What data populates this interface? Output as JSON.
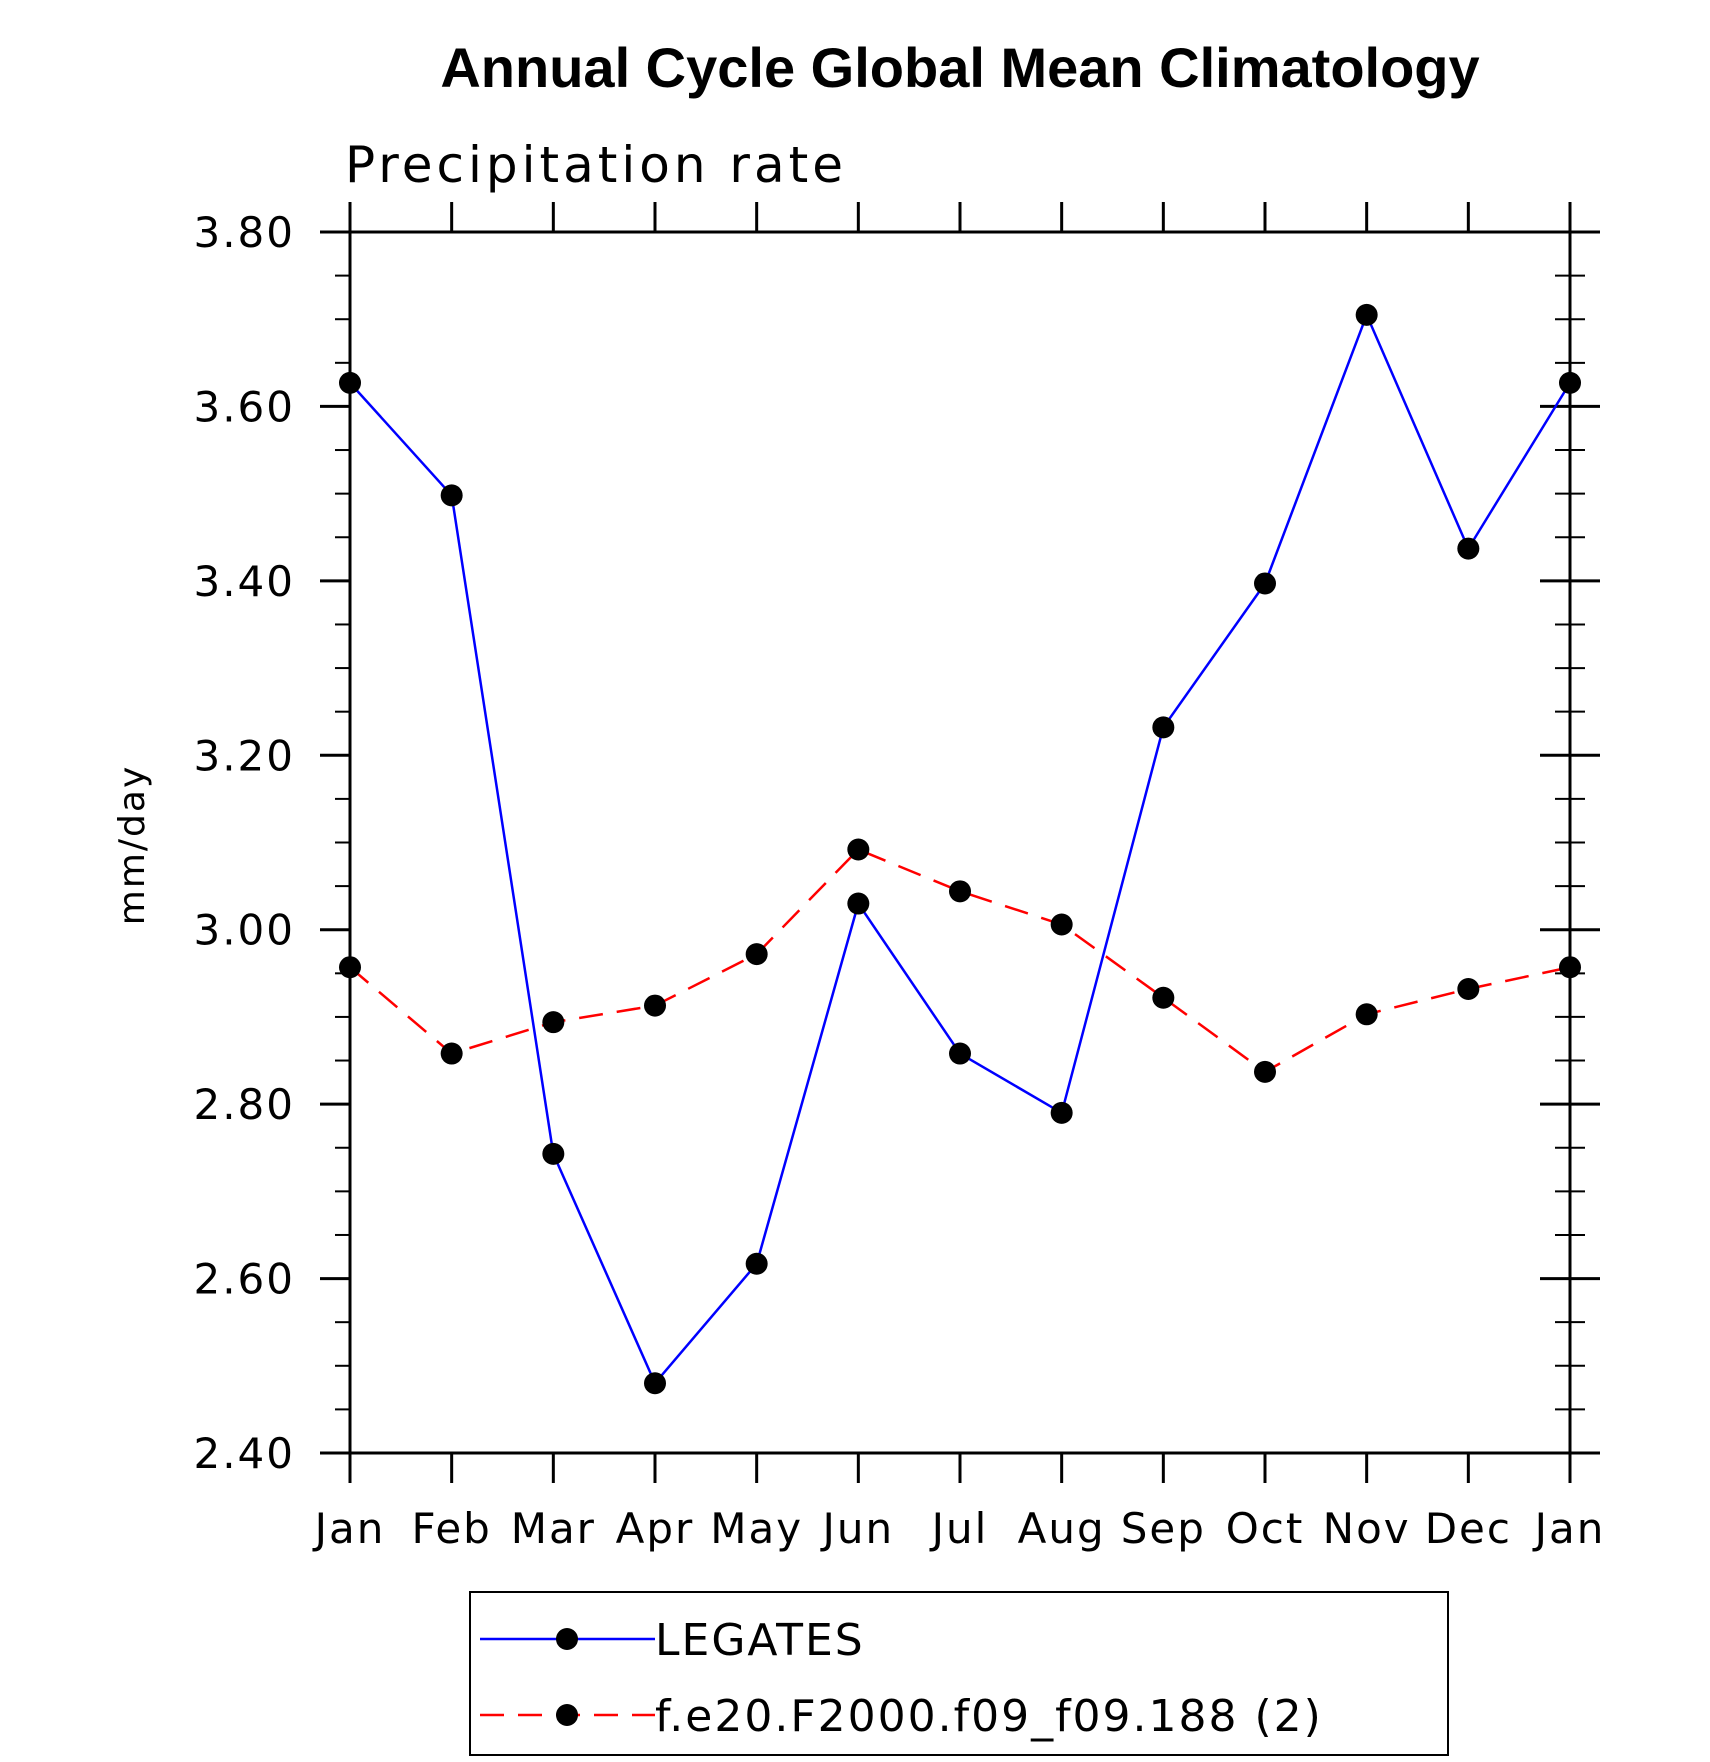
{
  "chart_data": {
    "type": "line",
    "title": "Annual Cycle Global Mean Climatology",
    "subtitle": "Precipitation rate",
    "xlabel": "",
    "ylabel": "mm/day",
    "categories": [
      "Jan",
      "Feb",
      "Mar",
      "Apr",
      "May",
      "Jun",
      "Jul",
      "Aug",
      "Sep",
      "Oct",
      "Nov",
      "Dec",
      "Jan"
    ],
    "y_ticks": [
      "2.40",
      "2.60",
      "2.80",
      "3.00",
      "3.20",
      "3.40",
      "3.60",
      "3.80"
    ],
    "ylim": [
      2.4,
      3.8
    ],
    "grid": false,
    "legend_position": "bottom",
    "series": [
      {
        "name": "LEGATES",
        "color": "#0000ff",
        "line_style": "solid",
        "marker": "filled-circle",
        "values": [
          3.627,
          3.498,
          2.743,
          2.48,
          2.617,
          3.03,
          2.858,
          2.79,
          3.232,
          3.397,
          3.705,
          3.437,
          3.627
        ]
      },
      {
        "name": "f.e20.F2000.f09_f09.188 (2)",
        "color": "#ff0000",
        "line_style": "dashed",
        "marker": "filled-circle",
        "values": [
          2.957,
          2.858,
          2.894,
          2.913,
          2.972,
          3.092,
          3.044,
          3.006,
          2.922,
          2.837,
          2.903,
          2.932,
          2.957
        ]
      }
    ]
  }
}
